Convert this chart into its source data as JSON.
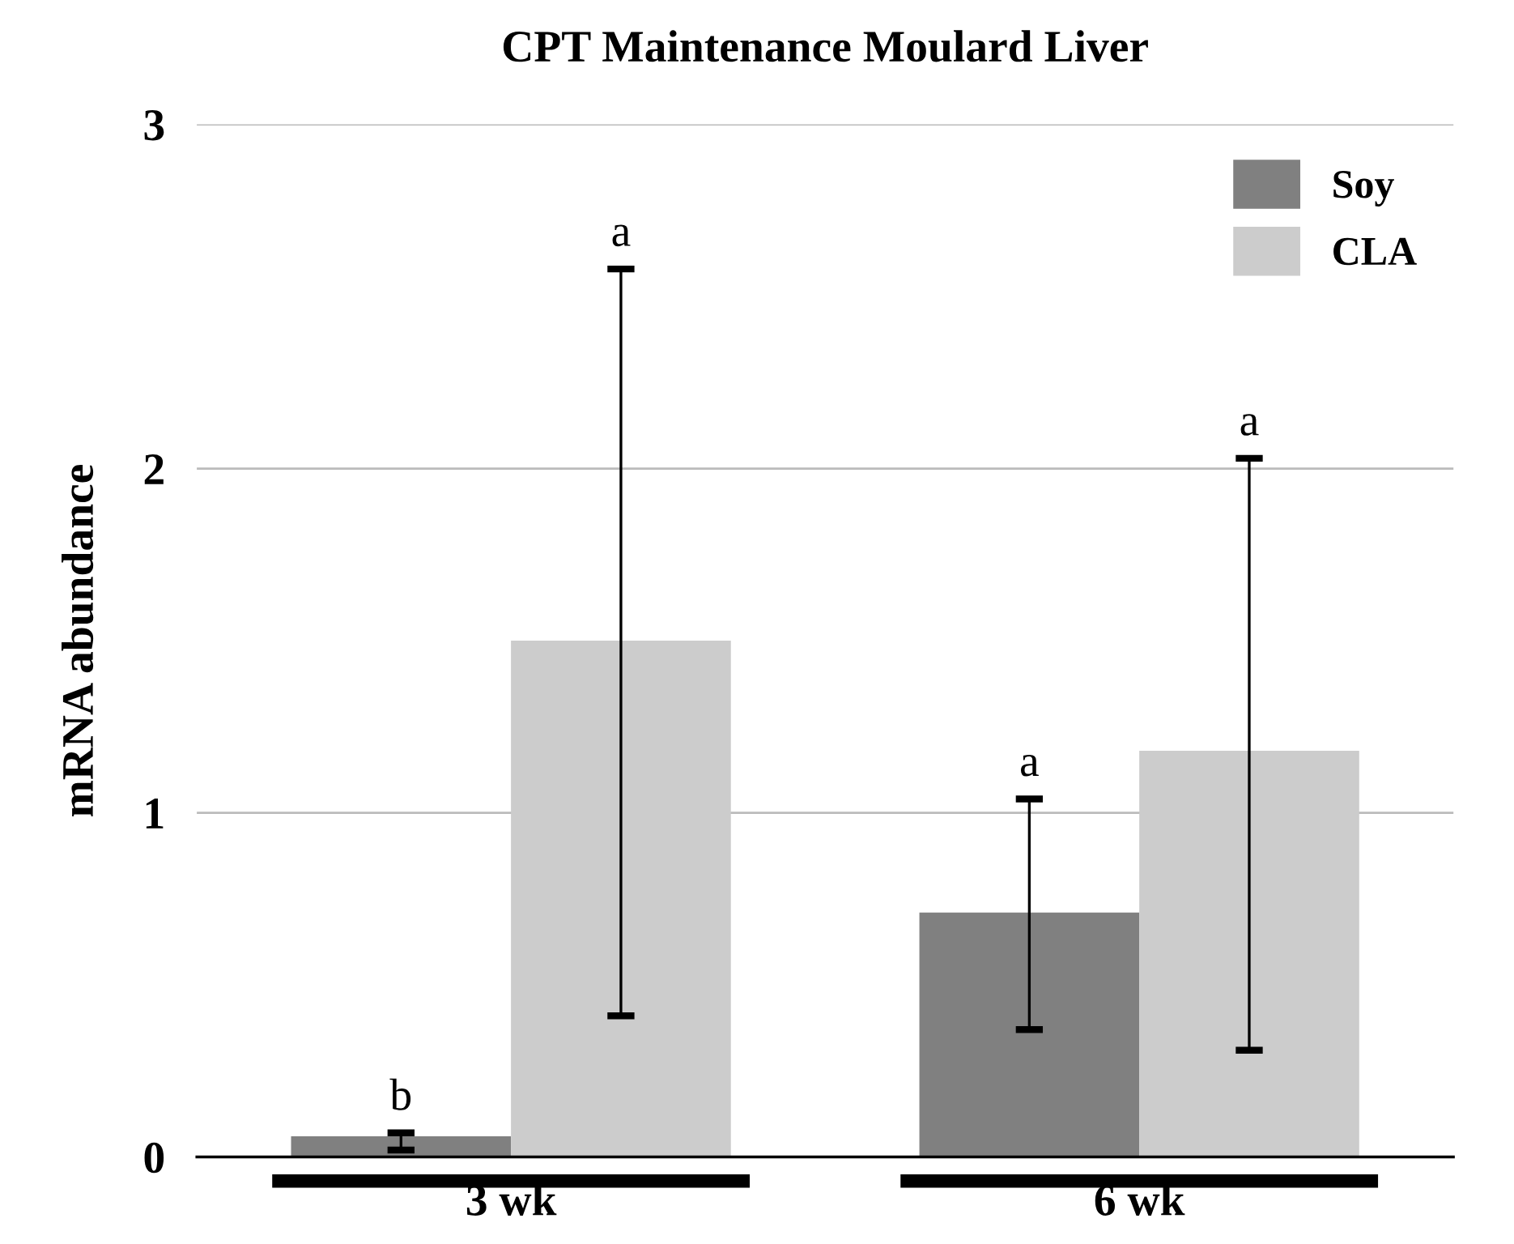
{
  "chart_data": {
    "type": "bar",
    "title": "CPT Maintenance Moulard Liver",
    "ylabel": "mRNA abundance",
    "categories": [
      "3 wk",
      "6 wk"
    ],
    "series": [
      {
        "name": "Soy",
        "color": "#808080",
        "values": [
          0.06,
          0.71
        ],
        "errors": [
          [
            0.02,
            0.07
          ],
          [
            0.37,
            1.04
          ]
        ]
      },
      {
        "name": "CLA",
        "color": "#cccccc",
        "values": [
          1.5,
          1.18
        ],
        "errors": [
          [
            0.41,
            2.58
          ],
          [
            0.31,
            2.03
          ]
        ]
      }
    ],
    "annotations": [
      "b",
      "a",
      "a",
      "a"
    ],
    "ylim": [
      0,
      3
    ],
    "yticks": [
      0,
      1,
      2,
      3
    ],
    "grid": "y",
    "legend": "top right"
  }
}
